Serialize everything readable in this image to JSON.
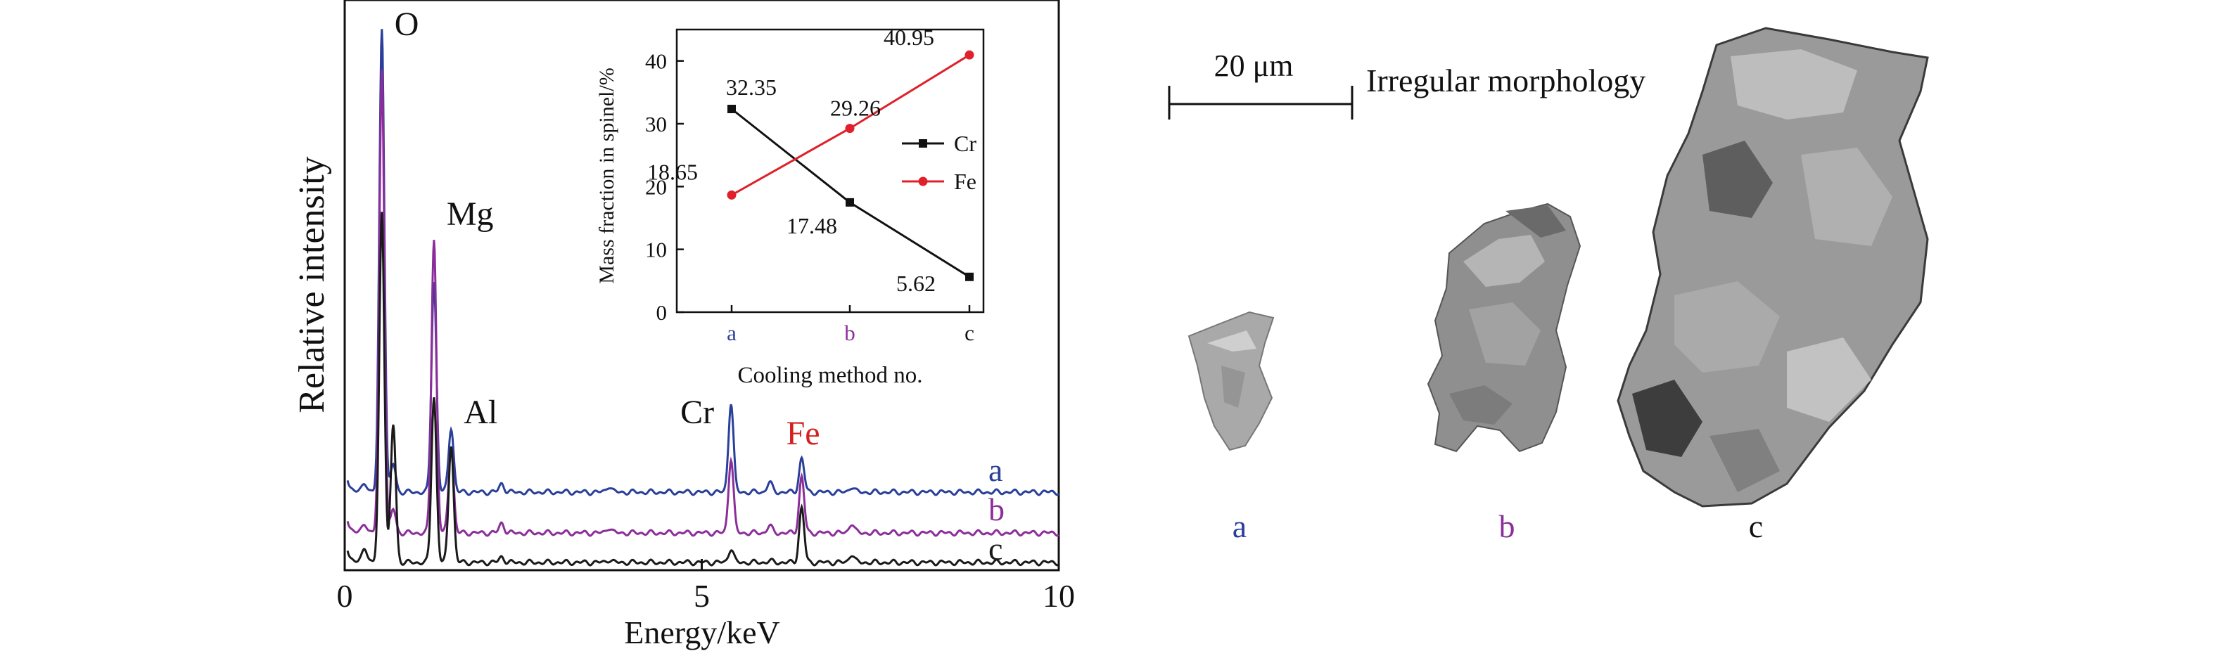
{
  "chart_data": [
    {
      "type": "line",
      "title": "",
      "xlabel": "Energy/keV",
      "ylabel": "Relative intensity",
      "xlim": [
        0,
        10
      ],
      "x_ticks": [
        "0",
        "5",
        "10"
      ],
      "grid": false,
      "series": [
        {
          "name": "a",
          "color": "#2a3f9a"
        },
        {
          "name": "b",
          "color": "#8b2e9a"
        },
        {
          "name": "c",
          "color": "#1a1a1a"
        }
      ],
      "peaks": [
        {
          "label": "O",
          "energy": 0.52,
          "color": "#111111"
        },
        {
          "label": "Mg",
          "energy": 1.25,
          "color": "#111111"
        },
        {
          "label": "Al",
          "energy": 1.49,
          "color": "#111111"
        },
        {
          "label": "Cr",
          "energy": 5.41,
          "color": "#111111"
        },
        {
          "label": "Fe",
          "energy": 6.4,
          "color": "#d42020"
        }
      ]
    },
    {
      "type": "line",
      "title": "",
      "xlabel": "Cooling method no.",
      "ylabel": "Mass fraction in spinel/%",
      "categories": [
        "a",
        "b",
        "c"
      ],
      "category_colors": [
        "#2a3f9a",
        "#8b2e9a",
        "#111111"
      ],
      "ylim": [
        0,
        45
      ],
      "y_ticks": [
        "0",
        "10",
        "20",
        "30",
        "40"
      ],
      "legend_position": "right",
      "series": [
        {
          "name": "Cr",
          "values": [
            32.35,
            17.48,
            5.62
          ],
          "labels": [
            "32.35",
            "17.48",
            "5.62"
          ],
          "color": "#111111"
        },
        {
          "name": "Fe",
          "values": [
            18.65,
            29.26,
            40.95
          ],
          "labels": [
            "18.65",
            "29.26",
            "40.95"
          ],
          "color": "#e0202a"
        }
      ]
    }
  ],
  "micrograph": {
    "scale_bar_label": "20 μm",
    "morphology_label": "Irregular morphology",
    "particles": [
      {
        "label": "a",
        "color": "#2a3f9a"
      },
      {
        "label": "b",
        "color": "#8b2e9a"
      },
      {
        "label": "c",
        "color": "#111111"
      }
    ]
  }
}
